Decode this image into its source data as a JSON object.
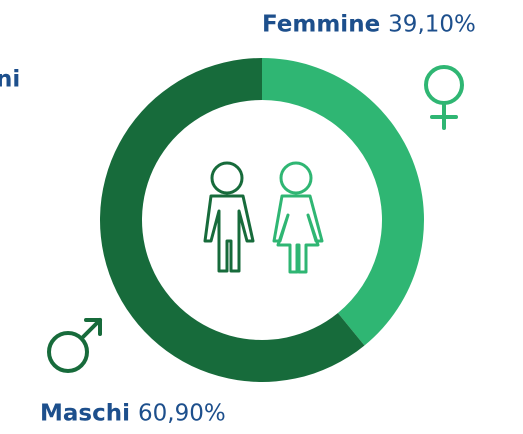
{
  "chart_data": {
    "type": "pie",
    "donut": true,
    "title": "ni",
    "categories": [
      "Femmine",
      "Maschi"
    ],
    "values": [
      39.1,
      60.9
    ],
    "value_labels": [
      "39,10%",
      "60,90%"
    ],
    "colors": [
      "#2fb673",
      "#176b3b"
    ]
  }
}
